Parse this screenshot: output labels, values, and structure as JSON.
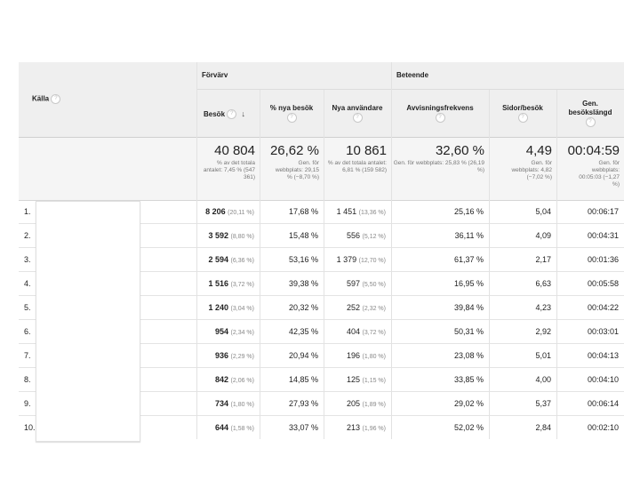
{
  "source_header": {
    "label": "Källa",
    "help": "?"
  },
  "groups": {
    "acquisition": "Förvärv",
    "behavior": "Beteende"
  },
  "columns": [
    {
      "key": "sessions",
      "label": "Besök",
      "help": "?",
      "sort_icon": "arrow-down-icon"
    },
    {
      "key": "new_pct",
      "label": "% nya besök",
      "help": "?"
    },
    {
      "key": "new_users",
      "label": "Nya användare",
      "help": "?"
    },
    {
      "key": "bounce",
      "label": "Avvisningsfrekvens",
      "help": "?"
    },
    {
      "key": "pages",
      "label": "Sidor/besök",
      "help": "?"
    },
    {
      "key": "duration",
      "label": "Gen. besökslängd",
      "help": "?"
    }
  ],
  "totals": [
    {
      "value": "40 804",
      "sub": "% av det totala antalet: 7,45 % (547 361)"
    },
    {
      "value": "26,62 %",
      "sub": "Gen. för webbplats: 29,15 % (−8,70 %)"
    },
    {
      "value": "10 861",
      "sub": "% av det totala antalet: 6,81 % (159 582)"
    },
    {
      "value": "32,60 %",
      "sub": "Gen. för webbplats: 25,83 % (26,19 %)"
    },
    {
      "value": "4,49",
      "sub": "Gen. för webbplats: 4,82 (−7,02 %)"
    },
    {
      "value": "00:04:59",
      "sub": "Gen. för webbplats: 00:05:03 (−1,27 %)"
    }
  ],
  "rows": [
    {
      "idx": "1.",
      "sessions": "8 206",
      "sessions_pct": "(20,11 %)",
      "new_pct": "17,68 %",
      "new_users": "1 451",
      "new_users_pct": "(13,36 %)",
      "bounce": "25,16 %",
      "pages": "5,04",
      "duration": "00:06:17"
    },
    {
      "idx": "2.",
      "sessions": "3 592",
      "sessions_pct": "(8,80 %)",
      "new_pct": "15,48 %",
      "new_users": "556",
      "new_users_pct": "(5,12 %)",
      "bounce": "36,11 %",
      "pages": "4,09",
      "duration": "00:04:31"
    },
    {
      "idx": "3.",
      "sessions": "2 594",
      "sessions_pct": "(6,36 %)",
      "new_pct": "53,16 %",
      "new_users": "1 379",
      "new_users_pct": "(12,70 %)",
      "bounce": "61,37 %",
      "pages": "2,17",
      "duration": "00:01:36"
    },
    {
      "idx": "4.",
      "sessions": "1 516",
      "sessions_pct": "(3,72 %)",
      "new_pct": "39,38 %",
      "new_users": "597",
      "new_users_pct": "(5,50 %)",
      "bounce": "16,95 %",
      "pages": "6,63",
      "duration": "00:05:58"
    },
    {
      "idx": "5.",
      "sessions": "1 240",
      "sessions_pct": "(3,04 %)",
      "new_pct": "20,32 %",
      "new_users": "252",
      "new_users_pct": "(2,32 %)",
      "bounce": "39,84 %",
      "pages": "4,23",
      "duration": "00:04:22"
    },
    {
      "idx": "6.",
      "sessions": "954",
      "sessions_pct": "(2,34 %)",
      "new_pct": "42,35 %",
      "new_users": "404",
      "new_users_pct": "(3,72 %)",
      "bounce": "50,31 %",
      "pages": "2,92",
      "duration": "00:03:01"
    },
    {
      "idx": "7.",
      "sessions": "936",
      "sessions_pct": "(2,29 %)",
      "new_pct": "20,94 %",
      "new_users": "196",
      "new_users_pct": "(1,80 %)",
      "bounce": "23,08 %",
      "pages": "5,01",
      "duration": "00:04:13"
    },
    {
      "idx": "8.",
      "sessions": "842",
      "sessions_pct": "(2,06 %)",
      "new_pct": "14,85 %",
      "new_users": "125",
      "new_users_pct": "(1,15 %)",
      "bounce": "33,85 %",
      "pages": "4,00",
      "duration": "00:04:10"
    },
    {
      "idx": "9.",
      "sessions": "734",
      "sessions_pct": "(1,80 %)",
      "new_pct": "27,93 %",
      "new_users": "205",
      "new_users_pct": "(1,89 %)",
      "bounce": "29,02 %",
      "pages": "5,37",
      "duration": "00:06:14"
    },
    {
      "idx": "10.",
      "sessions": "644",
      "sessions_pct": "(1,58 %)",
      "new_pct": "33,07 %",
      "new_users": "213",
      "new_users_pct": "(1,96 %)",
      "bounce": "52,02 %",
      "pages": "2,84",
      "duration": "00:02:10"
    }
  ]
}
